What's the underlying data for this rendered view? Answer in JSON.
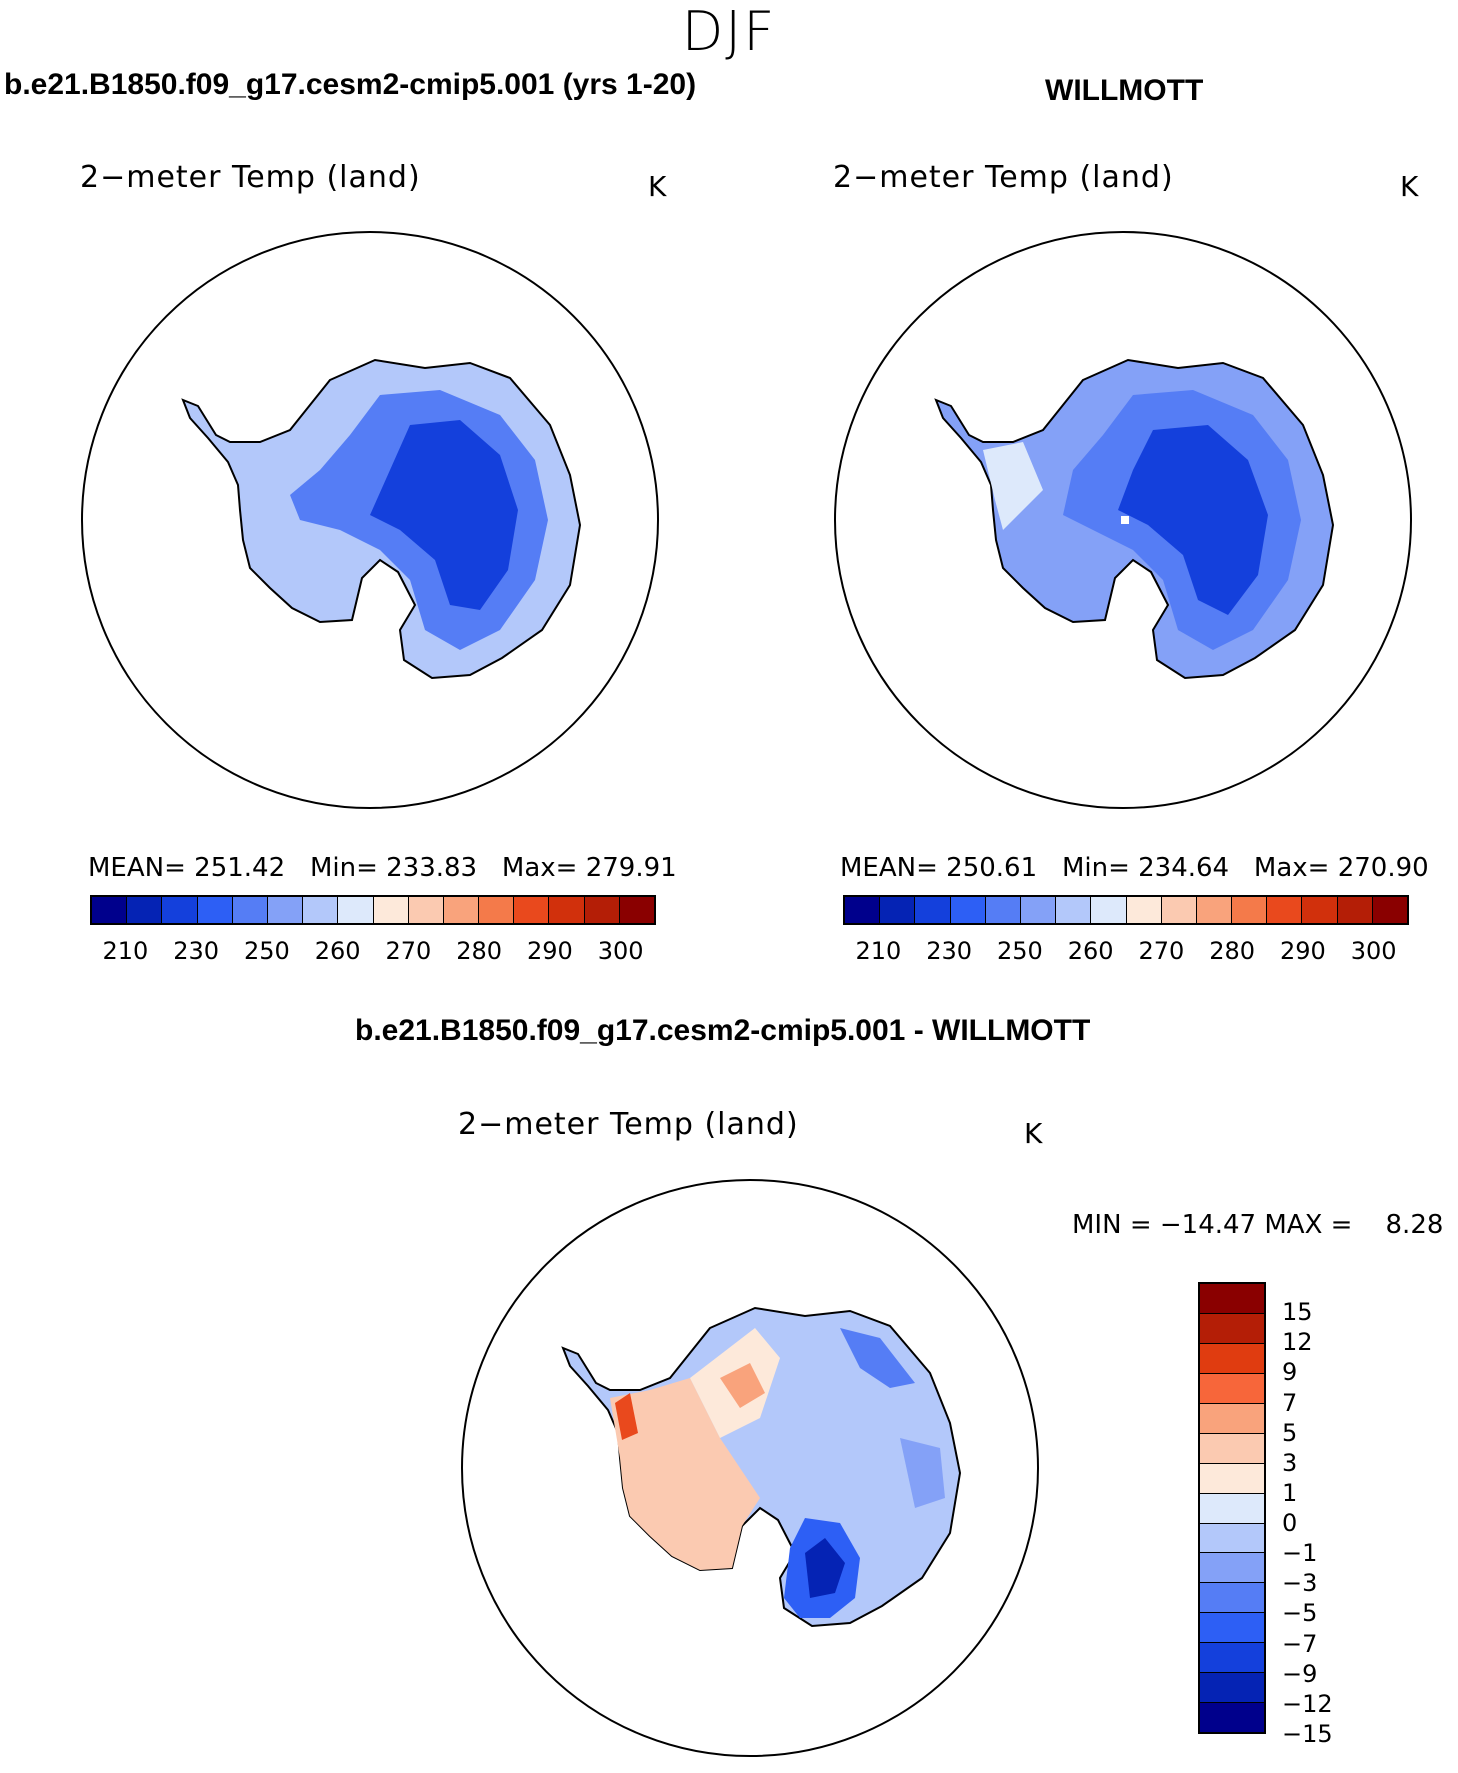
{
  "season": "DJF",
  "panels": [
    {
      "title": "b.e21.B1850.f09_g17.cesm2-cmip5.001 (yrs 1-20)",
      "variable": "2−meter Temp (land)",
      "unit": "K",
      "stats": {
        "mean_label": "MEAN=",
        "mean": "251.42",
        "min_label": "Min=",
        "min": "233.83",
        "max_label": "Max=",
        "max": "279.91"
      }
    },
    {
      "title": "WILLMOTT",
      "variable": "2−meter Temp (land)",
      "unit": "K",
      "stats": {
        "mean_label": "MEAN=",
        "mean": "250.61",
        "min_label": "Min=",
        "min": "234.64",
        "max_label": "Max=",
        "max": "270.90"
      }
    },
    {
      "title": "b.e21.B1850.f09_g17.cesm2-cmip5.001 - WILLMOTT",
      "variable": "2−meter Temp (land)",
      "unit": "K",
      "stats": {
        "min_label": "MIN =",
        "min": "−14.47",
        "max_label": "MAX =",
        "max": "8.28"
      }
    }
  ],
  "chart_data": [
    {
      "type": "heatmap",
      "title": "b.e21.B1850.f09_g17.cesm2-cmip5.001 (yrs 1-20)",
      "variable": "2−meter Temp (land)",
      "unit": "K",
      "mean": 251.42,
      "min": 233.83,
      "max": 279.91,
      "colorbar_ticks": [
        "210",
        "230",
        "250",
        "260",
        "270",
        "280",
        "290",
        "300"
      ],
      "colorbar_colors": [
        "#00008c",
        "#0523b4",
        "#1440dc",
        "#2d5ff5",
        "#557df5",
        "#84a1f7",
        "#b3c8fa",
        "#dde9fb",
        "#fde9da",
        "#fbcab1",
        "#f9a37c",
        "#f47a4a",
        "#e9491d",
        "#d1300c",
        "#b41e06",
        "#8a0000"
      ]
    },
    {
      "type": "heatmap",
      "title": "WILLMOTT",
      "variable": "2−meter Temp (land)",
      "unit": "K",
      "mean": 250.61,
      "min": 234.64,
      "max": 270.9,
      "colorbar_ticks": [
        "210",
        "230",
        "250",
        "260",
        "270",
        "280",
        "290",
        "300"
      ],
      "colorbar_colors": [
        "#00008c",
        "#0523b4",
        "#1440dc",
        "#2d5ff5",
        "#557df5",
        "#84a1f7",
        "#b3c8fa",
        "#dde9fb",
        "#fde9da",
        "#fbcab1",
        "#f9a37c",
        "#f47a4a",
        "#e9491d",
        "#d1300c",
        "#b41e06",
        "#8a0000"
      ]
    },
    {
      "type": "heatmap",
      "title": "b.e21.B1850.f09_g17.cesm2-cmip5.001 - WILLMOTT",
      "variable": "2−meter Temp (land)",
      "unit": "K",
      "min": -14.47,
      "max": 8.28,
      "colorbar_ticks": [
        "15",
        "12",
        "9",
        "7",
        "5",
        "3",
        "1",
        "0",
        "−1",
        "−3",
        "−5",
        "−7",
        "−9",
        "−12",
        "−15"
      ],
      "colorbar_colors": [
        "#8a0000",
        "#b41e06",
        "#e03c10",
        "#f7663a",
        "#f9a37c",
        "#fbcab1",
        "#fde9da",
        "#dde9fb",
        "#b3c8fa",
        "#84a1f7",
        "#557df5",
        "#2d5ff5",
        "#1440dc",
        "#0523b4",
        "#00008c"
      ]
    }
  ]
}
